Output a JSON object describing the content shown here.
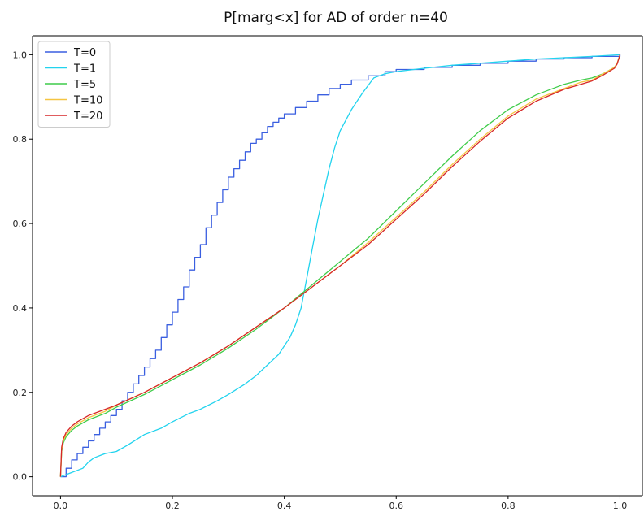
{
  "chart_data": {
    "type": "line",
    "title": "P[marg<x] for AD of order n=40",
    "xlabel": "",
    "ylabel": "",
    "xlim": [
      -0.05,
      1.04
    ],
    "ylim": [
      -0.045,
      1.045
    ],
    "xticks": [
      0.0,
      0.2,
      0.4,
      0.6,
      0.8,
      1.0
    ],
    "xtick_labels": [
      "0.0",
      "0.2",
      "0.4",
      "0.6",
      "0.8",
      "1.0"
    ],
    "yticks": [
      0.0,
      0.2,
      0.4,
      0.6,
      0.8,
      1.0
    ],
    "ytick_labels": [
      "0.0",
      "0.2",
      "0.4",
      "0.6",
      "0.8",
      "1.0"
    ],
    "grid": false,
    "legend_position": "top-left",
    "series": [
      {
        "name": "T=0",
        "color": "#3a5fe0",
        "step": true,
        "x": [
          0.0,
          0.01,
          0.02,
          0.03,
          0.04,
          0.05,
          0.06,
          0.07,
          0.08,
          0.09,
          0.1,
          0.11,
          0.12,
          0.13,
          0.14,
          0.15,
          0.16,
          0.17,
          0.18,
          0.19,
          0.2,
          0.21,
          0.22,
          0.23,
          0.24,
          0.25,
          0.26,
          0.27,
          0.28,
          0.29,
          0.3,
          0.31,
          0.32,
          0.33,
          0.34,
          0.35,
          0.36,
          0.37,
          0.38,
          0.39,
          0.4,
          0.42,
          0.44,
          0.46,
          0.48,
          0.5,
          0.52,
          0.55,
          0.58,
          0.6,
          0.65,
          0.7,
          0.75,
          0.8,
          0.85,
          0.9,
          0.95,
          1.0
        ],
        "y": [
          0.0,
          0.02,
          0.04,
          0.055,
          0.07,
          0.085,
          0.1,
          0.115,
          0.13,
          0.145,
          0.16,
          0.18,
          0.2,
          0.22,
          0.24,
          0.26,
          0.28,
          0.3,
          0.33,
          0.36,
          0.39,
          0.42,
          0.45,
          0.49,
          0.52,
          0.55,
          0.59,
          0.62,
          0.65,
          0.68,
          0.71,
          0.73,
          0.75,
          0.77,
          0.79,
          0.8,
          0.815,
          0.83,
          0.84,
          0.85,
          0.86,
          0.875,
          0.89,
          0.905,
          0.92,
          0.93,
          0.94,
          0.95,
          0.96,
          0.965,
          0.97,
          0.975,
          0.98,
          0.985,
          0.99,
          0.993,
          0.996,
          1.0
        ]
      },
      {
        "name": "T=1",
        "color": "#22d3ee",
        "step": false,
        "x": [
          0.0,
          0.02,
          0.04,
          0.05,
          0.06,
          0.08,
          0.1,
          0.12,
          0.15,
          0.18,
          0.2,
          0.23,
          0.25,
          0.28,
          0.3,
          0.33,
          0.35,
          0.37,
          0.39,
          0.4,
          0.41,
          0.42,
          0.43,
          0.44,
          0.45,
          0.46,
          0.47,
          0.48,
          0.49,
          0.5,
          0.52,
          0.54,
          0.56,
          0.58,
          0.6,
          0.65,
          0.7,
          0.75,
          0.8,
          0.85,
          0.9,
          0.95,
          1.0
        ],
        "y": [
          0.0,
          0.01,
          0.02,
          0.035,
          0.045,
          0.055,
          0.06,
          0.075,
          0.1,
          0.115,
          0.13,
          0.15,
          0.16,
          0.18,
          0.195,
          0.22,
          0.24,
          0.265,
          0.29,
          0.31,
          0.33,
          0.36,
          0.4,
          0.47,
          0.54,
          0.61,
          0.67,
          0.73,
          0.78,
          0.82,
          0.87,
          0.91,
          0.945,
          0.955,
          0.96,
          0.968,
          0.975,
          0.98,
          0.985,
          0.99,
          0.993,
          0.996,
          1.0
        ]
      },
      {
        "name": "T=5",
        "color": "#3fcc4a",
        "step": false,
        "x": [
          0.0,
          0.002,
          0.005,
          0.01,
          0.02,
          0.03,
          0.05,
          0.08,
          0.1,
          0.15,
          0.2,
          0.25,
          0.3,
          0.35,
          0.4,
          0.45,
          0.5,
          0.55,
          0.6,
          0.65,
          0.7,
          0.75,
          0.8,
          0.85,
          0.9,
          0.93,
          0.95,
          0.97,
          0.99,
          0.995,
          1.0
        ],
        "y": [
          0.0,
          0.06,
          0.08,
          0.095,
          0.11,
          0.12,
          0.135,
          0.15,
          0.165,
          0.195,
          0.23,
          0.265,
          0.305,
          0.35,
          0.4,
          0.455,
          0.51,
          0.565,
          0.63,
          0.695,
          0.76,
          0.82,
          0.87,
          0.905,
          0.93,
          0.94,
          0.945,
          0.955,
          0.97,
          0.98,
          1.0
        ]
      },
      {
        "name": "T=10",
        "color": "#f5c542",
        "step": false,
        "x": [
          0.0,
          0.002,
          0.005,
          0.01,
          0.02,
          0.03,
          0.05,
          0.08,
          0.1,
          0.15,
          0.2,
          0.25,
          0.3,
          0.35,
          0.4,
          0.45,
          0.5,
          0.55,
          0.6,
          0.65,
          0.7,
          0.75,
          0.8,
          0.85,
          0.9,
          0.93,
          0.95,
          0.97,
          0.99,
          0.995,
          1.0
        ],
        "y": [
          0.0,
          0.065,
          0.085,
          0.1,
          0.115,
          0.125,
          0.14,
          0.155,
          0.17,
          0.2,
          0.235,
          0.27,
          0.31,
          0.355,
          0.4,
          0.45,
          0.5,
          0.555,
          0.615,
          0.675,
          0.74,
          0.8,
          0.855,
          0.895,
          0.92,
          0.935,
          0.94,
          0.955,
          0.97,
          0.98,
          1.0
        ]
      },
      {
        "name": "T=20",
        "color": "#d62728",
        "step": false,
        "x": [
          0.0,
          0.002,
          0.005,
          0.01,
          0.02,
          0.03,
          0.05,
          0.08,
          0.1,
          0.15,
          0.2,
          0.25,
          0.3,
          0.35,
          0.4,
          0.45,
          0.5,
          0.55,
          0.6,
          0.65,
          0.7,
          0.75,
          0.8,
          0.85,
          0.9,
          0.93,
          0.95,
          0.97,
          0.99,
          0.995,
          1.0
        ],
        "y": [
          0.0,
          0.07,
          0.09,
          0.105,
          0.12,
          0.13,
          0.145,
          0.16,
          0.17,
          0.2,
          0.235,
          0.27,
          0.31,
          0.355,
          0.4,
          0.45,
          0.5,
          0.55,
          0.61,
          0.67,
          0.735,
          0.795,
          0.85,
          0.89,
          0.918,
          0.93,
          0.938,
          0.952,
          0.968,
          0.978,
          1.0
        ]
      }
    ]
  }
}
